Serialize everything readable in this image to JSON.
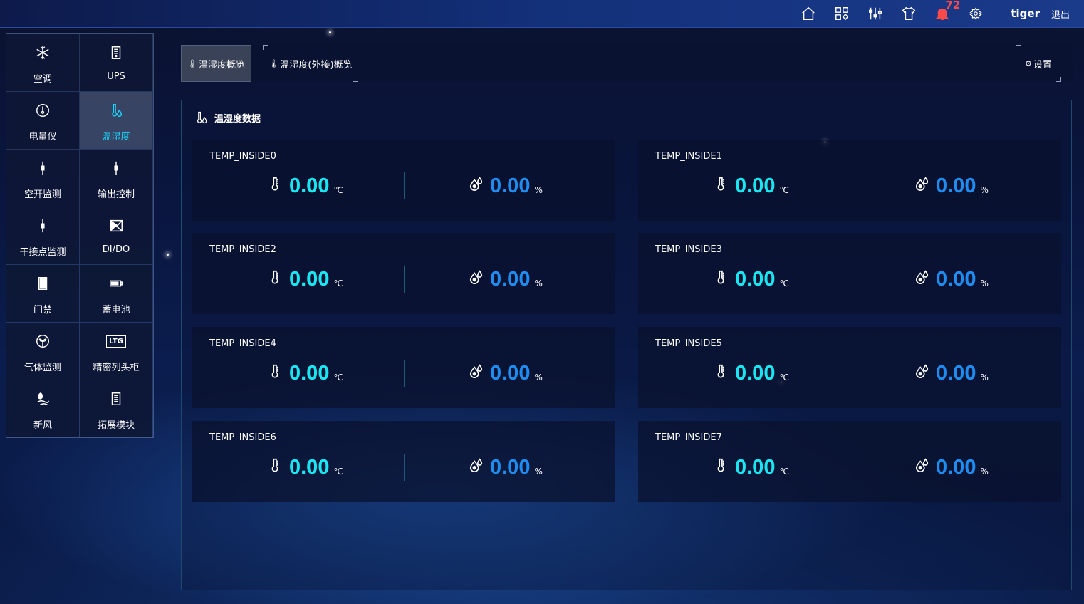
{
  "header": {
    "icons": [
      "home-icon",
      "grid-icon",
      "sliders-icon",
      "shirt-icon",
      "bell-icon",
      "gear-icon"
    ],
    "alarm_count": "72",
    "username": "tiger",
    "logout_label": "退出"
  },
  "sidebar": {
    "items": [
      {
        "label": "空调",
        "icon": "snowflake-icon"
      },
      {
        "label": "UPS",
        "icon": "ups-icon"
      },
      {
        "label": "电量仪",
        "icon": "meter-icon"
      },
      {
        "label": "温湿度",
        "icon": "thermo-humidity-icon",
        "active": true
      },
      {
        "label": "空开监测",
        "icon": "switch-icon"
      },
      {
        "label": "输出控制",
        "icon": "switch-icon"
      },
      {
        "label": "干接点监测",
        "icon": "switch-icon"
      },
      {
        "label": "DI/DO",
        "icon": "dido-icon"
      },
      {
        "label": "门禁",
        "icon": "door-icon"
      },
      {
        "label": "蓄电池",
        "icon": "battery-icon"
      },
      {
        "label": "气体监测",
        "icon": "gas-icon"
      },
      {
        "label": "精密列头柜",
        "icon": "ltg-icon",
        "icon_text": "LTG"
      },
      {
        "label": "新风",
        "icon": "fresh-air-icon"
      },
      {
        "label": "拓展模块",
        "icon": "module-icon"
      }
    ]
  },
  "tabs": [
    {
      "label": "温湿度概览",
      "active": true
    },
    {
      "label": "温湿度(外接)概览",
      "active": false
    }
  ],
  "settings_label": "设置",
  "panel": {
    "title": "温湿度数据",
    "temp_unit": "℃",
    "hum_unit": "%",
    "sensors": [
      {
        "name": "TEMP_INSIDE0",
        "temp": "0.00",
        "hum": "0.00"
      },
      {
        "name": "TEMP_INSIDE1",
        "temp": "0.00",
        "hum": "0.00"
      },
      {
        "name": "TEMP_INSIDE2",
        "temp": "0.00",
        "hum": "0.00"
      },
      {
        "name": "TEMP_INSIDE3",
        "temp": "0.00",
        "hum": "0.00"
      },
      {
        "name": "TEMP_INSIDE4",
        "temp": "0.00",
        "hum": "0.00"
      },
      {
        "name": "TEMP_INSIDE5",
        "temp": "0.00",
        "hum": "0.00"
      },
      {
        "name": "TEMP_INSIDE6",
        "temp": "0.00",
        "hum": "0.00"
      },
      {
        "name": "TEMP_INSIDE7",
        "temp": "0.00",
        "hum": "0.00"
      }
    ]
  },
  "colors": {
    "temp_value": "#19e6f0",
    "hum_value": "#1e8cf0",
    "active_text": "#19d6ff",
    "alarm": "#ff4a4a"
  }
}
